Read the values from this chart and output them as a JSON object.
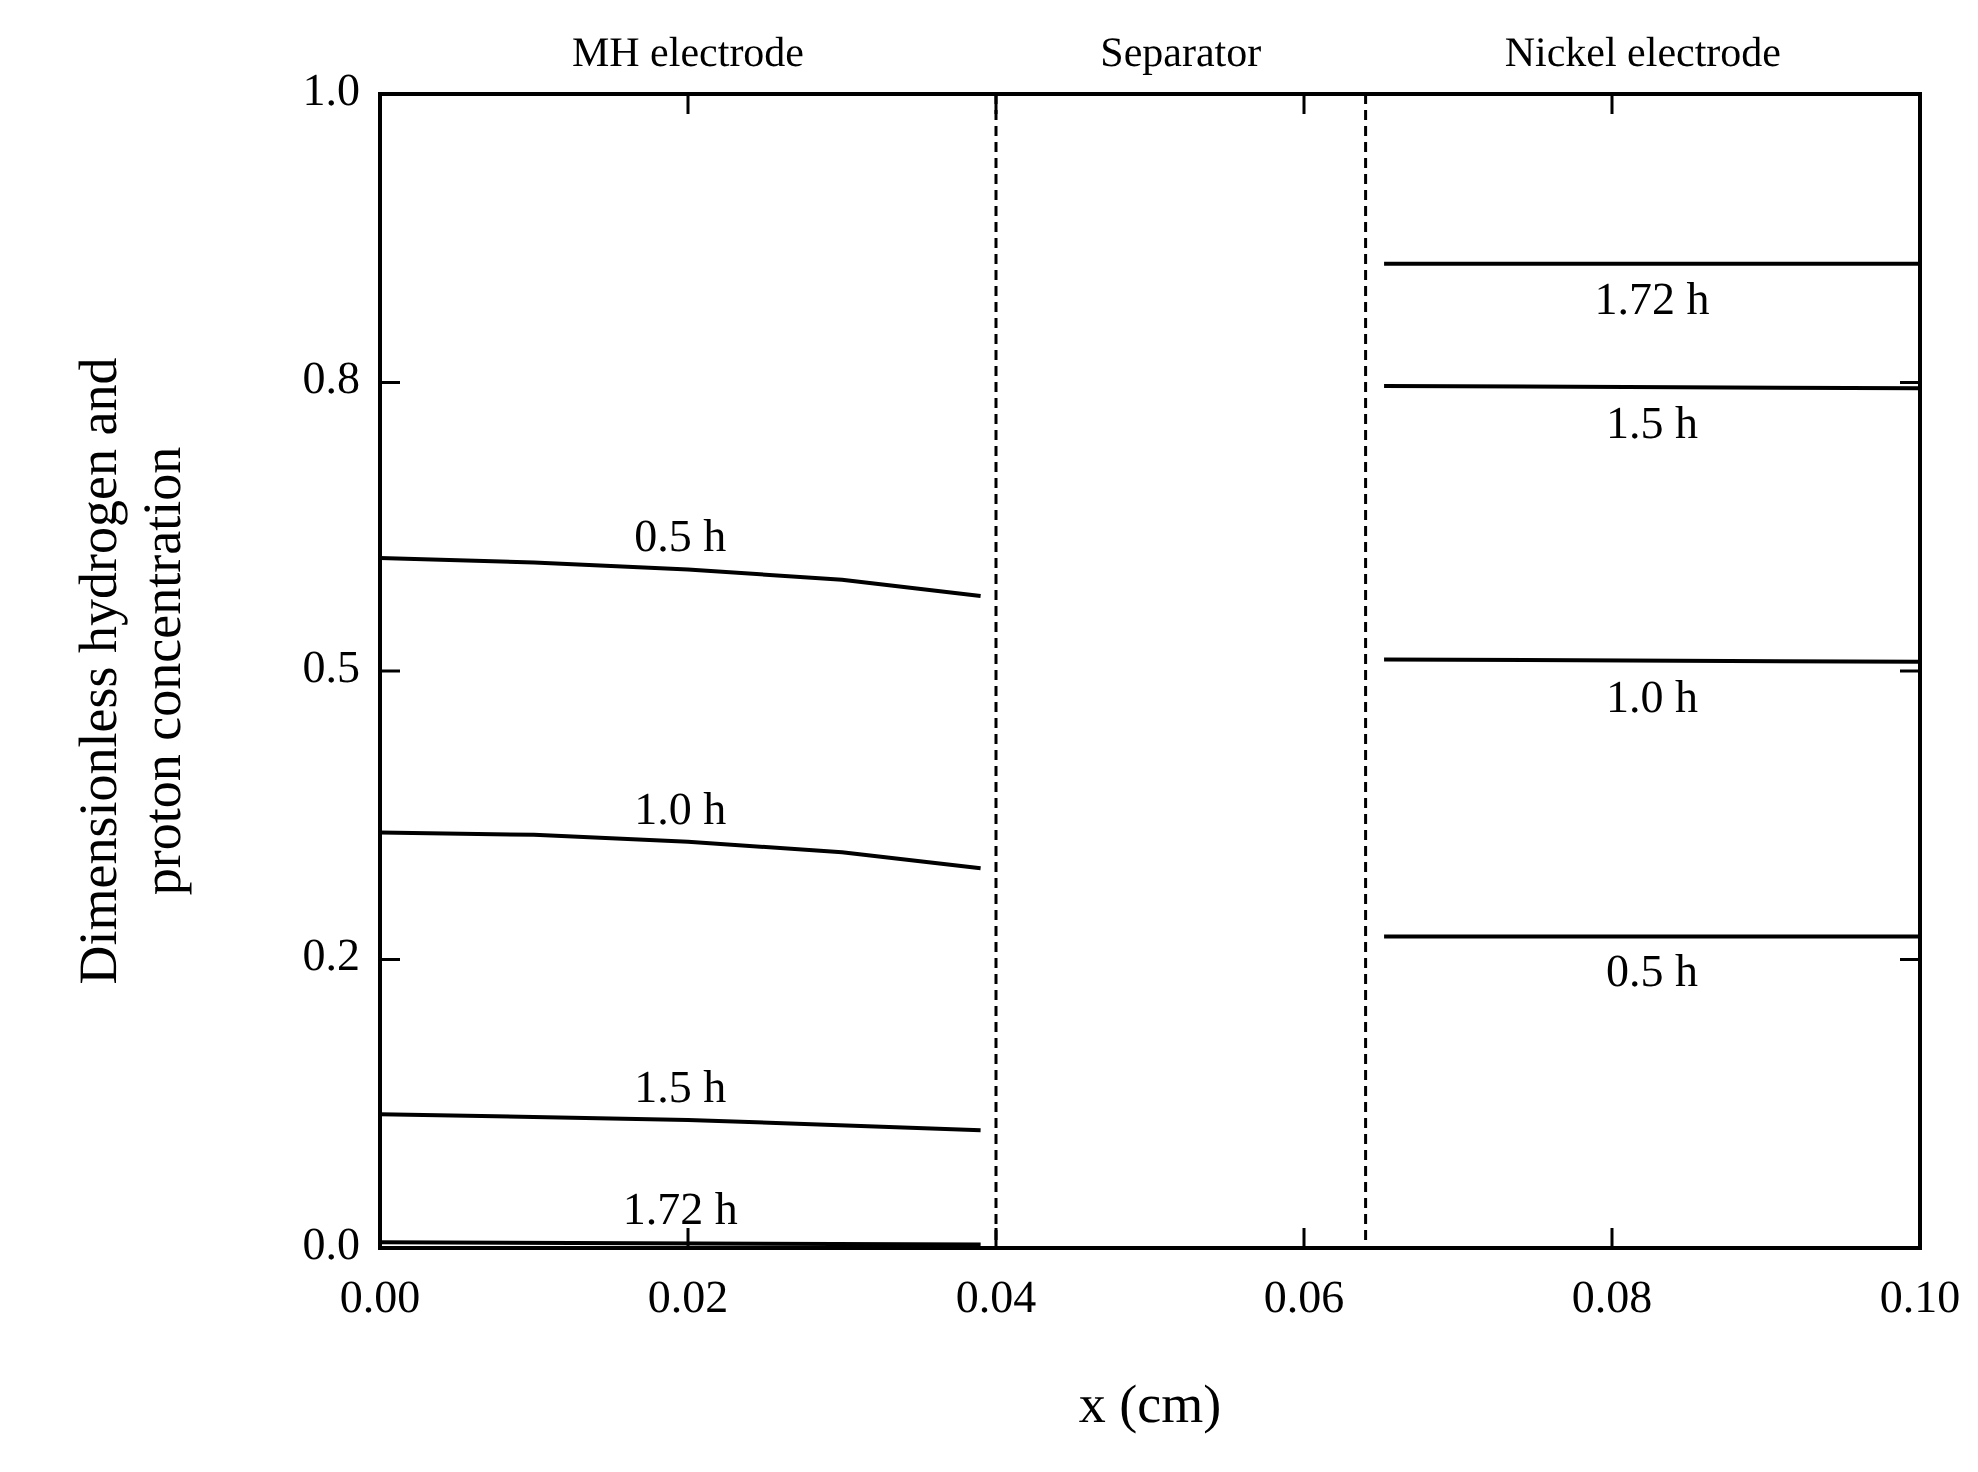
{
  "chart_data": {
    "type": "line",
    "xlabel": "x (cm)",
    "ylabel": "Dimensionless hydrogen and\nproton concentration",
    "xlim": [
      0,
      0.1
    ],
    "ylim": [
      0,
      1
    ],
    "xticks": [
      {
        "value": 0,
        "label": "0.00"
      },
      {
        "value": 0.02,
        "label": "0.02"
      },
      {
        "value": 0.04,
        "label": "0.04"
      },
      {
        "value": 0.06,
        "label": "0.06"
      },
      {
        "value": 0.08,
        "label": "0.08"
      },
      {
        "value": 0.1,
        "label": "0.10"
      }
    ],
    "yticks": [
      {
        "value": 0,
        "label": "0.0"
      },
      {
        "value": 0.25,
        "label": "0.2"
      },
      {
        "value": 0.5,
        "label": "0.5"
      },
      {
        "value": 0.75,
        "label": "0.8"
      },
      {
        "value": 1,
        "label": "1.0"
      }
    ],
    "series": [
      {
        "name": "0.5 h",
        "color": "#000000",
        "x": [
          0,
          0.01,
          0.02,
          0.03,
          0.039
        ],
        "values": [
          0.598,
          0.594,
          0.588,
          0.579,
          0.565
        ]
      },
      {
        "name": "1.0 h",
        "color": "#000000",
        "x": [
          0,
          0.01,
          0.02,
          0.03,
          0.039
        ],
        "values": [
          0.36,
          0.358,
          0.352,
          0.343,
          0.329
        ]
      },
      {
        "name": "1.5 h",
        "color": "#000000",
        "x": [
          0,
          0.02,
          0.039
        ],
        "values": [
          0.116,
          0.111,
          0.102
        ]
      },
      {
        "name": "1.72 h",
        "color": "#000000",
        "x": [
          0,
          0.039
        ],
        "values": [
          0.005,
          0.003
        ]
      },
      {
        "name": "1.72 h",
        "color": "#000000",
        "x": [
          0.0652,
          0.1
        ],
        "values": [
          0.853,
          0.853
        ]
      },
      {
        "name": "1.5 h",
        "color": "#000000",
        "x": [
          0.0652,
          0.1
        ],
        "values": [
          0.747,
          0.745
        ]
      },
      {
        "name": "1.0 h",
        "color": "#000000",
        "x": [
          0.0652,
          0.1
        ],
        "values": [
          0.51,
          0.508
        ]
      },
      {
        "name": "0.5 h",
        "color": "#000000",
        "x": [
          0.0652,
          0.1
        ],
        "values": [
          0.27,
          0.27
        ]
      }
    ],
    "ref_lines": [
      {
        "axis": "x",
        "value": 0.04,
        "line_style": "dashed"
      },
      {
        "axis": "x",
        "value": 0.064,
        "line_style": "dashed"
      }
    ],
    "annotations": [
      "MH electrode",
      "Separator",
      "Nickel electrode"
    ],
    "grid": false,
    "marker": "none",
    "line_style": "solid"
  }
}
